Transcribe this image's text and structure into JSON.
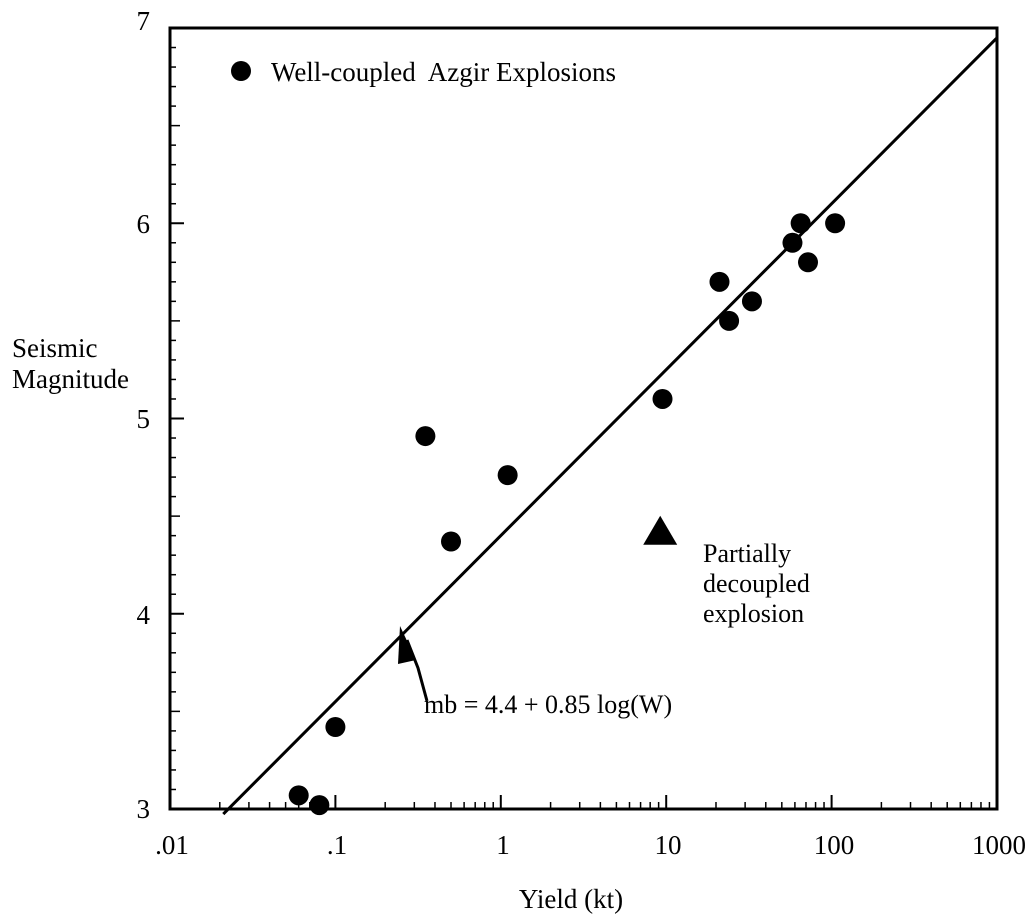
{
  "chart_data": {
    "type": "scatter",
    "x_scale": "log",
    "xlim": [
      0.01,
      1000
    ],
    "ylim": [
      3,
      7
    ],
    "xlabel": "Yield (kt)",
    "ylabel_lines": [
      "Seismic",
      "Magnitude"
    ],
    "x_tick_values": [
      0.01,
      0.1,
      1,
      10,
      100,
      1000
    ],
    "x_tick_labels": [
      ".01",
      ".1",
      "1",
      "10",
      "100",
      "1000"
    ],
    "y_tick_values": [
      3,
      4,
      5,
      6,
      7
    ],
    "y_tick_labels": [
      "3",
      "4",
      "5",
      "6",
      "7"
    ],
    "grid": false,
    "legend": {
      "position": "top-left",
      "entries": [
        {
          "marker": "circle",
          "label": "Well-coupled  Azgir Explosions"
        }
      ]
    },
    "series": [
      {
        "name": "Well-coupled  Azgir Explosions",
        "marker": "circle",
        "points": [
          {
            "x": 0.06,
            "y": 3.07
          },
          {
            "x": 0.08,
            "y": 3.02
          },
          {
            "x": 0.1,
            "y": 3.42
          },
          {
            "x": 0.35,
            "y": 4.91
          },
          {
            "x": 0.5,
            "y": 4.37
          },
          {
            "x": 1.1,
            "y": 4.71
          },
          {
            "x": 9.5,
            "y": 5.1
          },
          {
            "x": 21,
            "y": 5.7
          },
          {
            "x": 24,
            "y": 5.5
          },
          {
            "x": 33,
            "y": 5.6
          },
          {
            "x": 58,
            "y": 5.9
          },
          {
            "x": 65,
            "y": 6.0
          },
          {
            "x": 72,
            "y": 5.8
          },
          {
            "x": 105,
            "y": 6.0
          }
        ]
      },
      {
        "name": "Partially decoupled explosion",
        "marker": "triangle",
        "points": [
          {
            "x": 9.2,
            "y": 4.42
          }
        ]
      }
    ],
    "fit_line": {
      "equation": "mb = 4.4 + 0.85 log(W)",
      "x_range": [
        0.021,
        1000
      ]
    },
    "annotations": [
      {
        "text_lines": [
          "Partially",
          "decoupled",
          "explosion"
        ]
      },
      {
        "text": "mb = 4.4 + 0.85 log(W)",
        "arrow_to": {
          "x": 0.25,
          "y": 3.89
        }
      }
    ]
  }
}
